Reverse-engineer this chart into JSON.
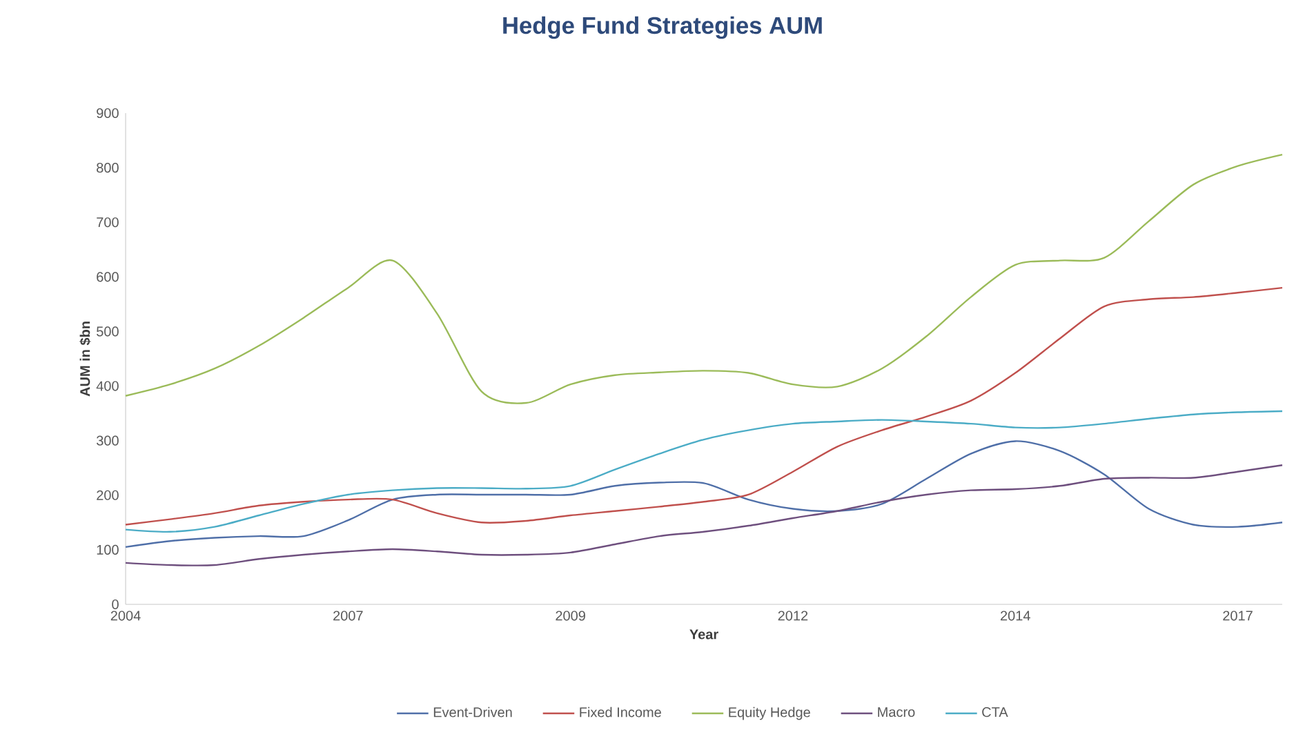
{
  "chart_data": {
    "type": "line",
    "title": "Hedge Fund Strategies AUM",
    "xlabel": "Year",
    "ylabel": "AUM in $bn",
    "categories": [
      "2004",
      null,
      null,
      null,
      null,
      "2007",
      null,
      null,
      null,
      null,
      "2009",
      null,
      null,
      null,
      null,
      "2012",
      null,
      null,
      null,
      null,
      "2014",
      null,
      null,
      null,
      null,
      "2017",
      null
    ],
    "series": [
      {
        "name": "Event-Driven",
        "color": "#4f6fa8",
        "values": [
          105,
          116,
          122,
          125,
          125,
          154,
          192,
          201,
          201,
          201,
          201,
          217,
          223,
          222,
          192,
          175,
          171,
          184,
          230,
          276,
          299,
          281,
          238,
          175,
          146,
          142,
          150
        ]
      },
      {
        "name": "Fixed Income",
        "color": "#c0504d",
        "values": [
          146,
          156,
          167,
          181,
          188,
          192,
          192,
          167,
          150,
          153,
          163,
          171,
          179,
          188,
          201,
          243,
          289,
          319,
          344,
          373,
          424,
          487,
          546,
          559,
          563,
          571,
          580
        ]
      },
      {
        "name": "Equity Hedge",
        "color": "#9bbb59",
        "values": [
          382,
          403,
          432,
          474,
          525,
          580,
          630,
          533,
          390,
          369,
          403,
          420,
          425,
          428,
          424,
          403,
          399,
          432,
          491,
          563,
          622,
          630,
          635,
          702,
          769,
          803,
          824
        ]
      },
      {
        "name": "Macro",
        "color": "#6e4f7e",
        "values": [
          76,
          72,
          72,
          83,
          91,
          97,
          101,
          97,
          91,
          91,
          95,
          110,
          125,
          133,
          144,
          158,
          171,
          188,
          201,
          209,
          211,
          217,
          230,
          232,
          232,
          243,
          255
        ]
      },
      {
        "name": "CTA",
        "color": "#4bacc6",
        "values": [
          137,
          133,
          142,
          163,
          184,
          201,
          209,
          213,
          213,
          212,
          217,
          247,
          276,
          302,
          319,
          331,
          335,
          338,
          335,
          331,
          324,
          324,
          331,
          340,
          348,
          352,
          354
        ]
      }
    ],
    "ylim": [
      0,
      900
    ],
    "yticks": [
      0,
      100,
      200,
      300,
      400,
      500,
      600,
      700,
      800,
      900
    ],
    "grid": false,
    "legend": "bottom",
    "marker": "none",
    "line_style": "solid"
  }
}
